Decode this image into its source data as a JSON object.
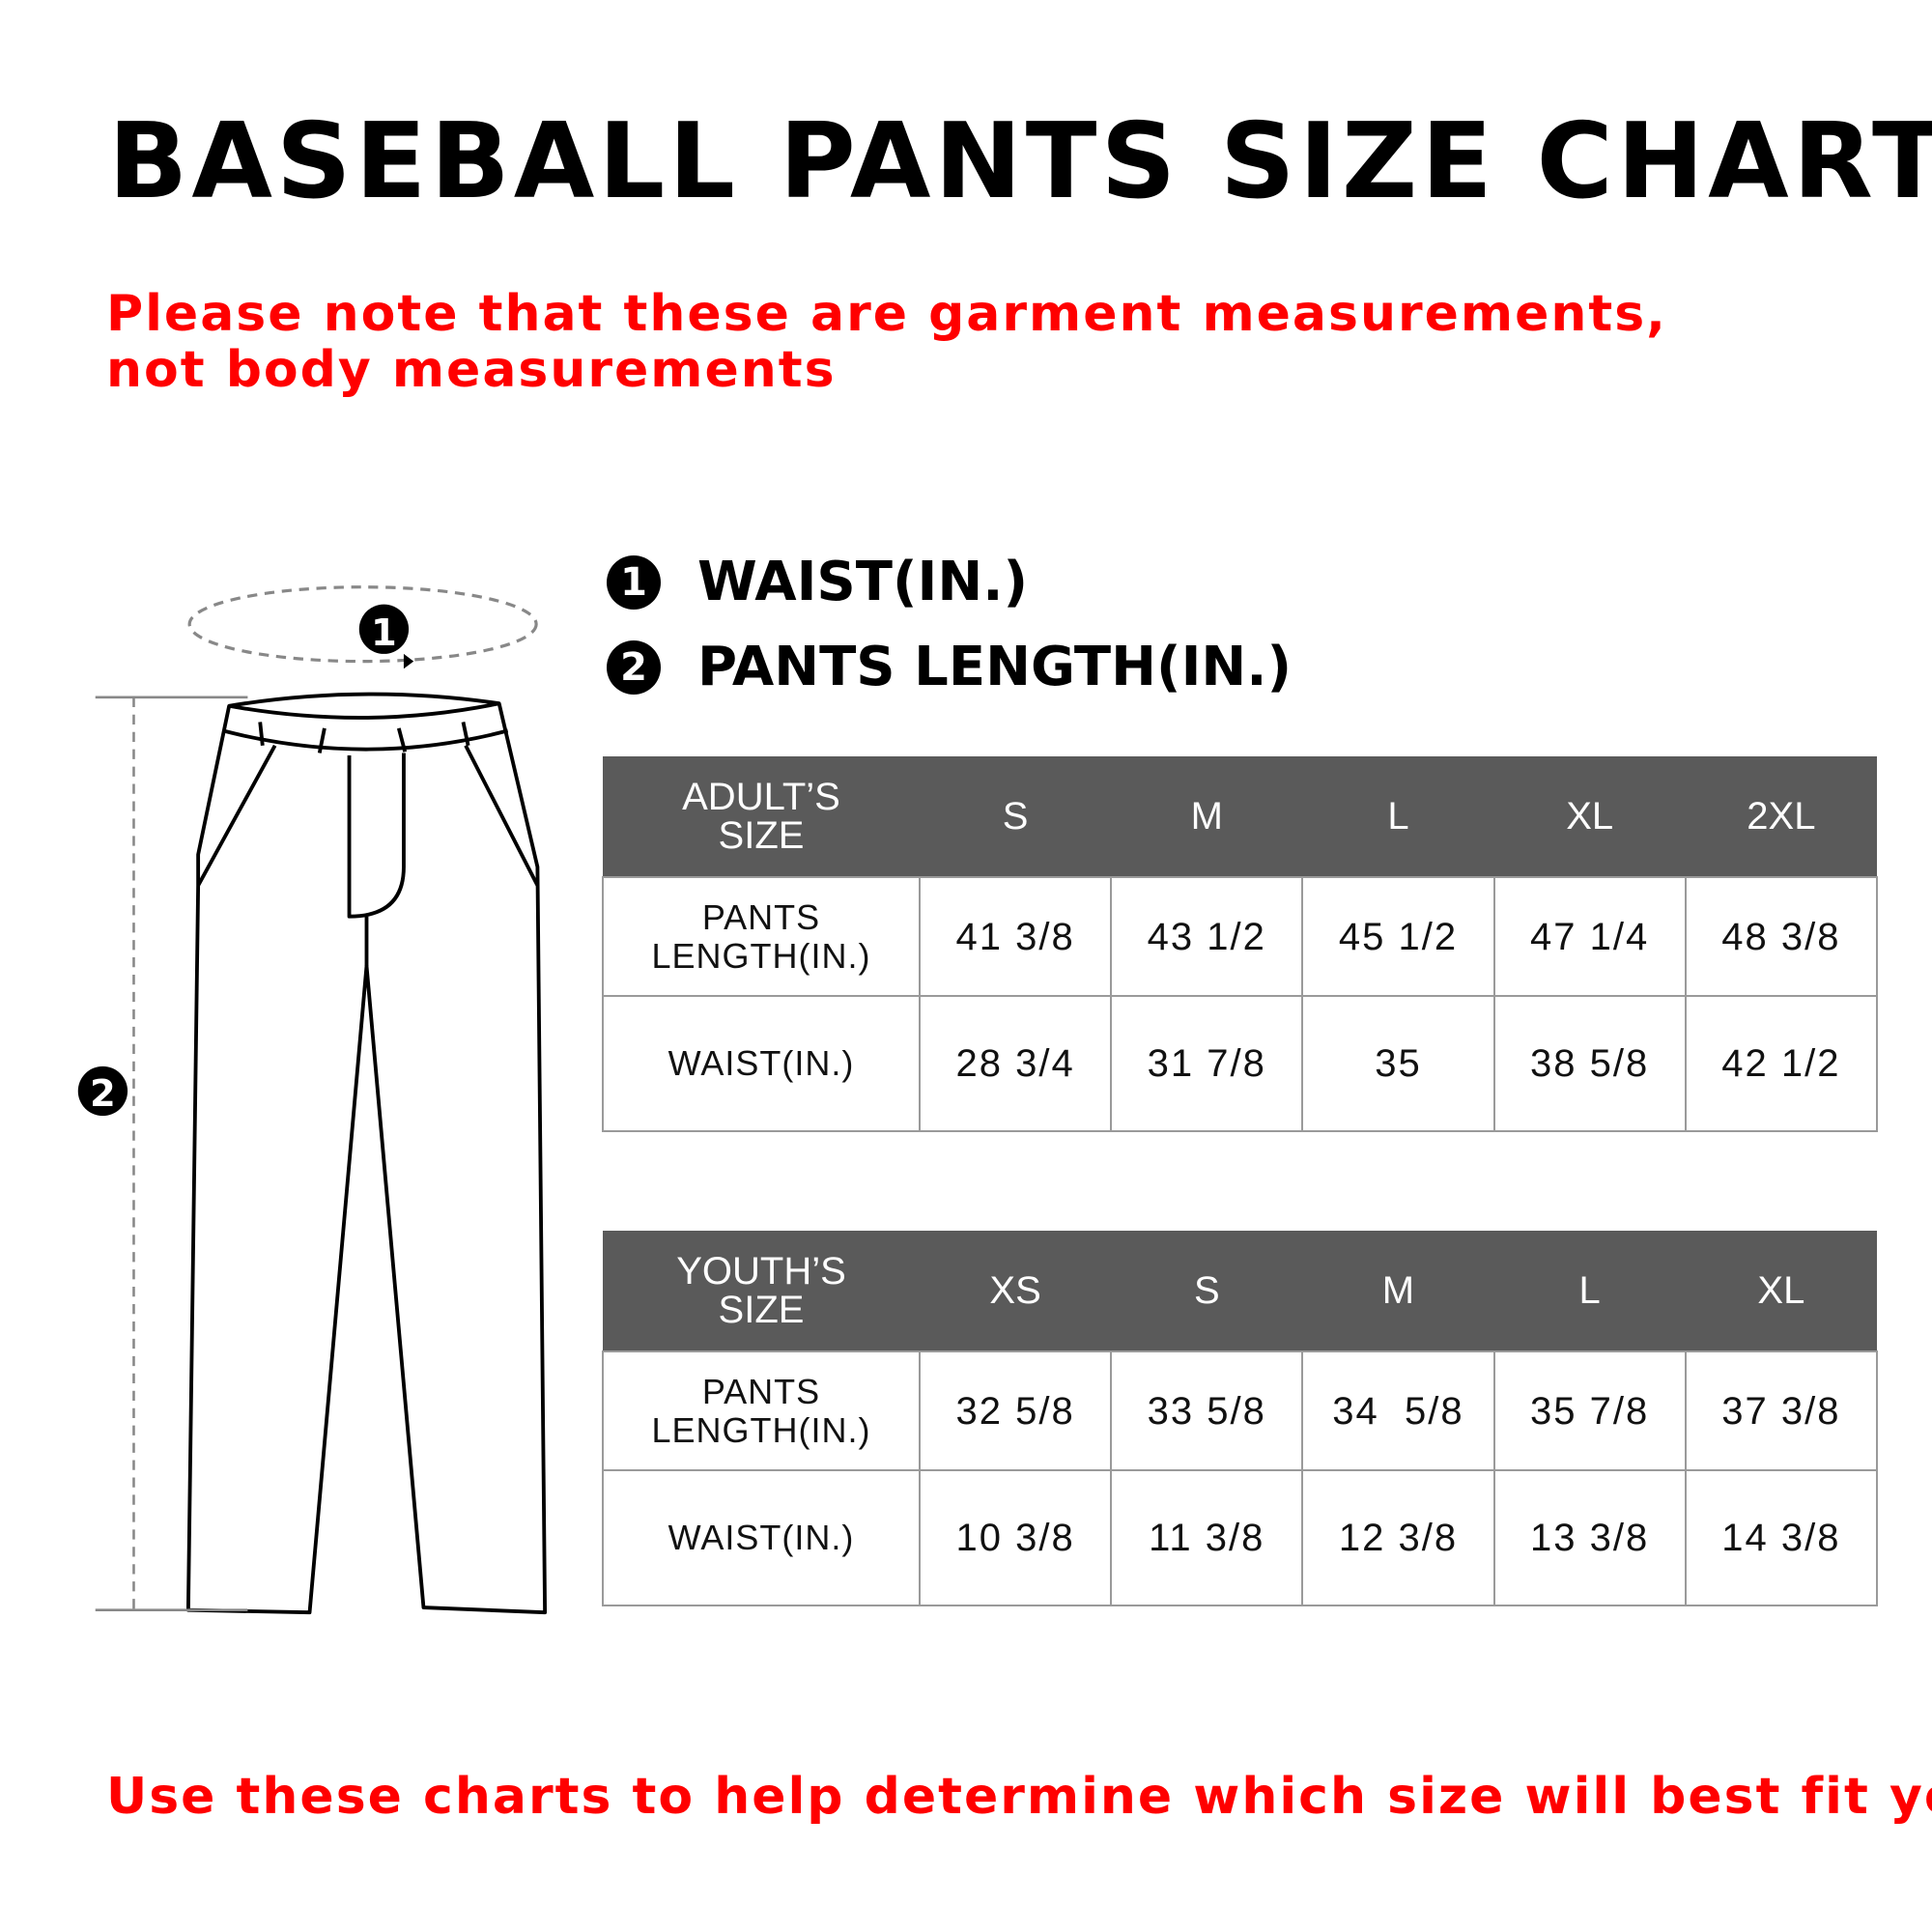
{
  "title": "BASEBALL PANTS SIZE CHART",
  "note": "Please note that these are garment measurements, not body measurements",
  "legend": [
    {
      "marker": "1",
      "label": "WAIST(IN.)"
    },
    {
      "marker": "2",
      "label": "PANTS LENGTH(IN.)"
    }
  ],
  "adult_table": {
    "header": [
      "ADULT’S SIZE",
      "S",
      "M",
      "L",
      "XL",
      "2XL"
    ],
    "rows": [
      [
        "PANTS LENGTH(IN.)",
        "41 3/8",
        "43 1/2",
        "45 1/2",
        "47 1/4",
        "48 3/8"
      ],
      [
        "WAIST(IN.)",
        "28 3/4",
        "31 7/8",
        "35",
        "38 5/8",
        "42 1/2"
      ]
    ]
  },
  "youth_table": {
    "header": [
      "YOUTH’S SIZE",
      "XS",
      "S",
      "M",
      "L",
      "XL"
    ],
    "rows": [
      [
        "PANTS LENGTH(IN.)",
        "32 5/8",
        "33 5/8",
        "34  5/8",
        "35 7/8",
        "37 3/8"
      ],
      [
        "WAIST(IN.)",
        "10 3/8",
        "11 3/8",
        "12 3/8",
        "13 3/8",
        "14 3/8"
      ]
    ]
  },
  "diagram": {
    "marker_waist": "1",
    "marker_length": "2"
  },
  "footer": "Use these charts to help determine which size will best fit you",
  "colors": {
    "accent_red": "#ff0000",
    "table_header": "#5a5a5a"
  }
}
